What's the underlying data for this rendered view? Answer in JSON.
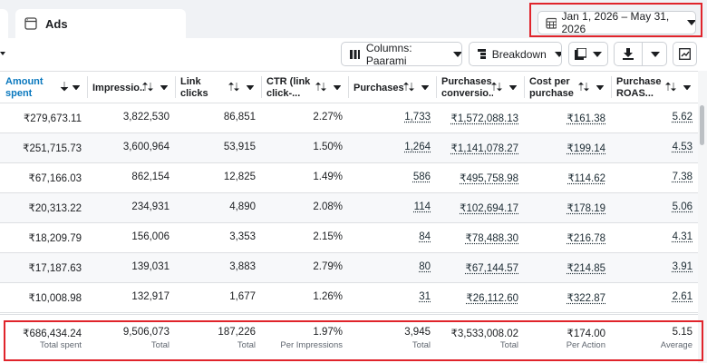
{
  "tab": {
    "label": "Ads"
  },
  "date_range": "Jan 1, 2026 – May 31, 2026",
  "toolbar": {
    "columns": "Columns: Paarami",
    "breakdown": "Breakdown"
  },
  "table": {
    "columns": [
      "Amount spent",
      "Impressio...",
      "Link clicks",
      "CTR (link click-...",
      "Purchases",
      "Purchases conversio...",
      "Cost per purchase",
      "Purchase ROAS..."
    ],
    "rows": [
      [
        "₹279,673.11",
        "3,822,530",
        "86,851",
        "2.27%",
        "1,733",
        "₹1,572,088.13",
        "₹161.38",
        "5.62"
      ],
      [
        "₹251,715.73",
        "3,600,964",
        "53,915",
        "1.50%",
        "1,264",
        "₹1,141,078.27",
        "₹199.14",
        "4.53"
      ],
      [
        "₹67,166.03",
        "862,154",
        "12,825",
        "1.49%",
        "586",
        "₹495,758.98",
        "₹114.62",
        "7.38"
      ],
      [
        "₹20,313.22",
        "234,931",
        "4,890",
        "2.08%",
        "114",
        "₹102,694.17",
        "₹178.19",
        "5.06"
      ],
      [
        "₹18,209.79",
        "156,006",
        "3,353",
        "2.15%",
        "84",
        "₹78,488.30",
        "₹216.78",
        "4.31"
      ],
      [
        "₹17,187.63",
        "139,031",
        "3,883",
        "2.79%",
        "80",
        "₹67,144.57",
        "₹214.85",
        "3.91"
      ],
      [
        "₹10,008.98",
        "132,917",
        "1,677",
        "1.26%",
        "31",
        "₹26,112.60",
        "₹322.87",
        "2.61"
      ]
    ],
    "totals": {
      "values": [
        "₹686,434.24",
        "9,506,073",
        "187,226",
        "1.97%",
        "3,945",
        "₹3,533,008.02",
        "₹174.00",
        "5.15"
      ],
      "labels": [
        "Total spent",
        "Total",
        "Total",
        "Per Impressions",
        "Total",
        "Total",
        "Per Action",
        "Average"
      ]
    }
  }
}
